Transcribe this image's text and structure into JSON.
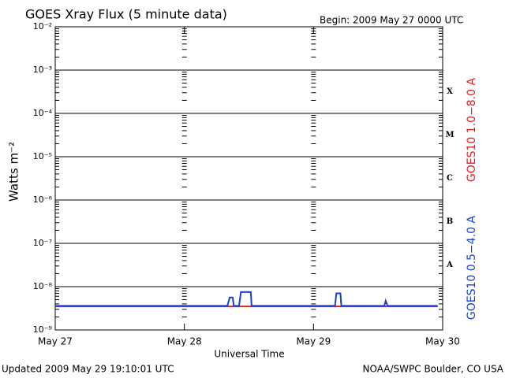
{
  "chart_data": {
    "type": "line",
    "title": "GOES Xray Flux (5 minute data)",
    "subtitle": "Begin:  2009 May 27 0000 UTC",
    "y_label": "Watts m⁻²",
    "x_label": "Universal Time",
    "footer_left": "Updated 2009 May 29 19:10:01 UTC",
    "footer_right": "NOAA/SWPC Boulder, CO USA",
    "log_y": true,
    "grid": true,
    "ylim": [
      1e-09,
      0.01
    ],
    "yticks": [
      {
        "value": 1e-09,
        "label": "10⁻⁹"
      },
      {
        "value": 1e-08,
        "label": "10⁻⁸"
      },
      {
        "value": 1e-07,
        "label": "10⁻⁷"
      },
      {
        "value": 1e-06,
        "label": "10⁻⁶"
      },
      {
        "value": 1e-05,
        "label": "10⁻⁵"
      },
      {
        "value": 0.0001,
        "label": "10⁻⁴"
      },
      {
        "value": 0.001,
        "label": "10⁻³"
      },
      {
        "value": 0.01,
        "label": "10⁻²"
      }
    ],
    "xlim": [
      "2009-05-27T00:00",
      "2009-05-30T00:00"
    ],
    "xticks": [
      {
        "value": "2009-05-27T00:00",
        "label": "May 27"
      },
      {
        "value": "2009-05-28T00:00",
        "label": "May 28"
      },
      {
        "value": "2009-05-29T00:00",
        "label": "May 29"
      },
      {
        "value": "2009-05-30T00:00",
        "label": "May 30"
      }
    ],
    "flare_classes": [
      {
        "value": 0.0001,
        "label": "X"
      },
      {
        "value": 1e-05,
        "label": "M"
      },
      {
        "value": 1e-06,
        "label": "C"
      },
      {
        "value": 1e-07,
        "label": "B"
      },
      {
        "value": 1e-08,
        "label": "A"
      }
    ],
    "series": [
      {
        "name": "GOES10 1.0−8.0 A",
        "color": "#dd2222",
        "x": [
          "2009-05-27T00:00",
          "2009-05-29T23:05"
        ],
        "values": [
          3.5e-09,
          3.5e-09
        ]
      },
      {
        "name": "GOES10 0.5−4.0 A",
        "color": "#1a3fd0",
        "x": [
          "2009-05-27T00:00",
          "2009-05-28T08:00",
          "2009-05-28T08:25",
          "2009-05-28T09:00",
          "2009-05-28T09:10",
          "2009-05-28T10:10",
          "2009-05-28T10:30",
          "2009-05-28T12:20",
          "2009-05-28T12:30",
          "2009-05-29T04:00",
          "2009-05-29T04:15",
          "2009-05-29T05:00",
          "2009-05-29T05:10",
          "2009-05-29T13:10",
          "2009-05-29T13:25",
          "2009-05-29T13:45",
          "2009-05-29T23:05"
        ],
        "values": [
          3.6e-09,
          3.6e-09,
          5.6e-09,
          5.6e-09,
          3.6e-09,
          3.6e-09,
          7.5e-09,
          7.5e-09,
          3.6e-09,
          3.6e-09,
          7e-09,
          7e-09,
          3.6e-09,
          3.6e-09,
          4.7e-09,
          3.6e-09,
          3.6e-09
        ]
      }
    ]
  }
}
